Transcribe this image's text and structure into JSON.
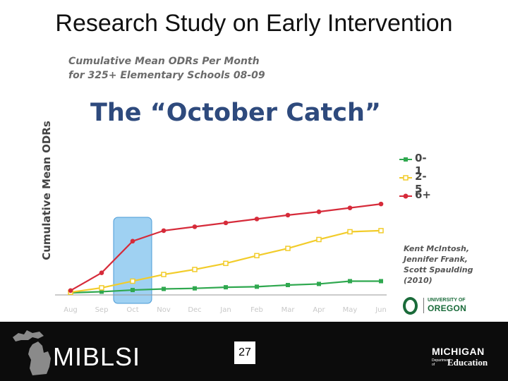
{
  "slide": {
    "title": "Research Study on Early Intervention",
    "page_number": "27"
  },
  "chart_data": {
    "type": "line",
    "subtitle_lines": [
      "Cumulative Mean ODRs Per Month",
      "for 325+ Elementary Schools 08-09"
    ],
    "headline": "The “October Catch”",
    "ylabel": "Cumulative Mean ODRs",
    "xlabel": "",
    "categories": [
      "Aug",
      "Sep",
      "Oct",
      "Nov",
      "Dec",
      "Jan",
      "Feb",
      "Mar",
      "Apr",
      "May",
      "Jun"
    ],
    "ylim": [
      0,
      15
    ],
    "series": [
      {
        "name": "0-1",
        "color": "#2fa84f",
        "marker": "square",
        "values": [
          0,
          0.2,
          0.5,
          0.7,
          0.8,
          1.0,
          1.1,
          1.4,
          1.6,
          2.1,
          2.1
        ]
      },
      {
        "name": "2-5",
        "color": "#f2cc2a",
        "marker": "square-open",
        "values": [
          0.1,
          0.9,
          2.1,
          3.3,
          4.2,
          5.3,
          6.7,
          8.0,
          9.6,
          11.0,
          11.2
        ]
      },
      {
        "name": "6+",
        "color": "#d62b3a",
        "marker": "circle",
        "values": [
          0.4,
          3.6,
          9.3,
          11.2,
          11.9,
          12.6,
          13.3,
          14.0,
          14.6,
          15.3,
          16.0
        ]
      }
    ],
    "legend_position": "right",
    "grid": false,
    "highlight_category": "Oct",
    "highlight_color": "#7fc2ee"
  },
  "citation_lines": [
    "Kent McIntosh,",
    "Jennifer Frank,",
    "Scott Spaulding",
    "(2010)"
  ],
  "logos": {
    "uo_small": "UNIVERSITY OF",
    "uo_big": "OREGON",
    "miblsi": "MIBLSI",
    "mde_top": "MICHIGAN",
    "mde_dept_lines": [
      "Department",
      "of"
    ],
    "mde_bottom": "Education"
  }
}
